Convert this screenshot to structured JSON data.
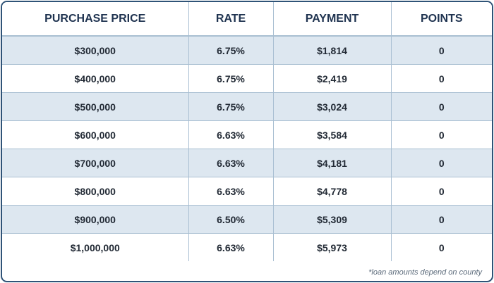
{
  "headers": [
    "PURCHASE PRICE",
    "RATE",
    "PAYMENT",
    "POINTS"
  ],
  "rows": [
    [
      "$300,000",
      "6.75%",
      "$1,814",
      "0"
    ],
    [
      "$400,000",
      "6.75%",
      "$2,419",
      "0"
    ],
    [
      "$500,000",
      "6.75%",
      "$3,024",
      "0"
    ],
    [
      "$600,000",
      "6.63%",
      "$3,584",
      "0"
    ],
    [
      "$700,000",
      "6.63%",
      "$4,181",
      "0"
    ],
    [
      "$800,000",
      "6.63%",
      "$4,778",
      "0"
    ],
    [
      "$900,000",
      "6.50%",
      "$5,309",
      "0"
    ],
    [
      "$1,000,000",
      "6.63%",
      "$5,973",
      "0"
    ]
  ],
  "footnote": "*loan amounts depend on county",
  "colors": {
    "border": "#2f5377",
    "header_text": "#1f3350",
    "stripe": "#dde7f0",
    "grid": "#a9bfd2"
  }
}
